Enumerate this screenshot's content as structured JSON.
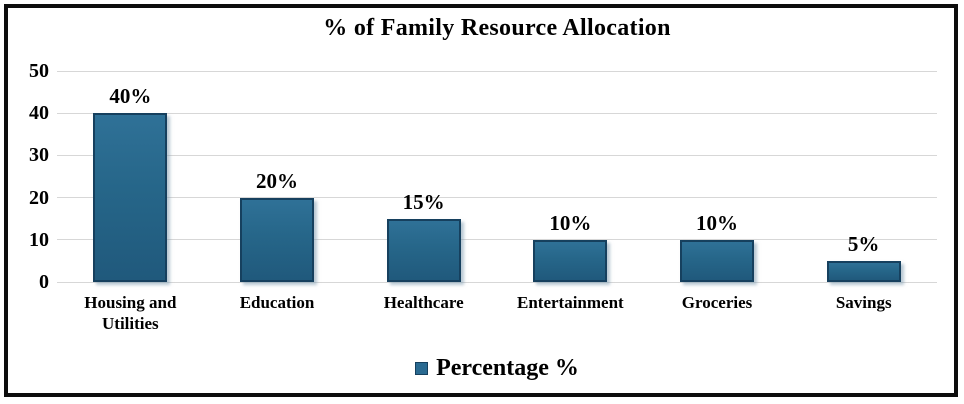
{
  "chart_data": {
    "type": "bar",
    "title": "% of Family Resource Allocation",
    "categories": [
      "Housing and Utilities",
      "Education",
      "Healthcare",
      "Entertainment",
      "Groceries",
      "Savings"
    ],
    "values": [
      40,
      20,
      15,
      10,
      10,
      5
    ],
    "data_labels": [
      "40%",
      "20%",
      "15%",
      "10%",
      "10%",
      "5%"
    ],
    "series": [
      {
        "name": "Percentage %",
        "values": [
          40,
          20,
          15,
          10,
          10,
          5
        ]
      }
    ],
    "legend": {
      "label": "Percentage %",
      "position": "bottom"
    },
    "xlabel": "",
    "ylabel": "",
    "y_ticks": [
      0,
      10,
      20,
      30,
      40,
      50
    ],
    "ylim": [
      0,
      50
    ],
    "grid": true,
    "colors": {
      "bar_fill": "#266689",
      "bar_border": "#16405e",
      "gridline": "#d7d7d7",
      "text": "#000000",
      "frame_border": "#0d0d0d",
      "background": "#ffffff"
    }
  }
}
